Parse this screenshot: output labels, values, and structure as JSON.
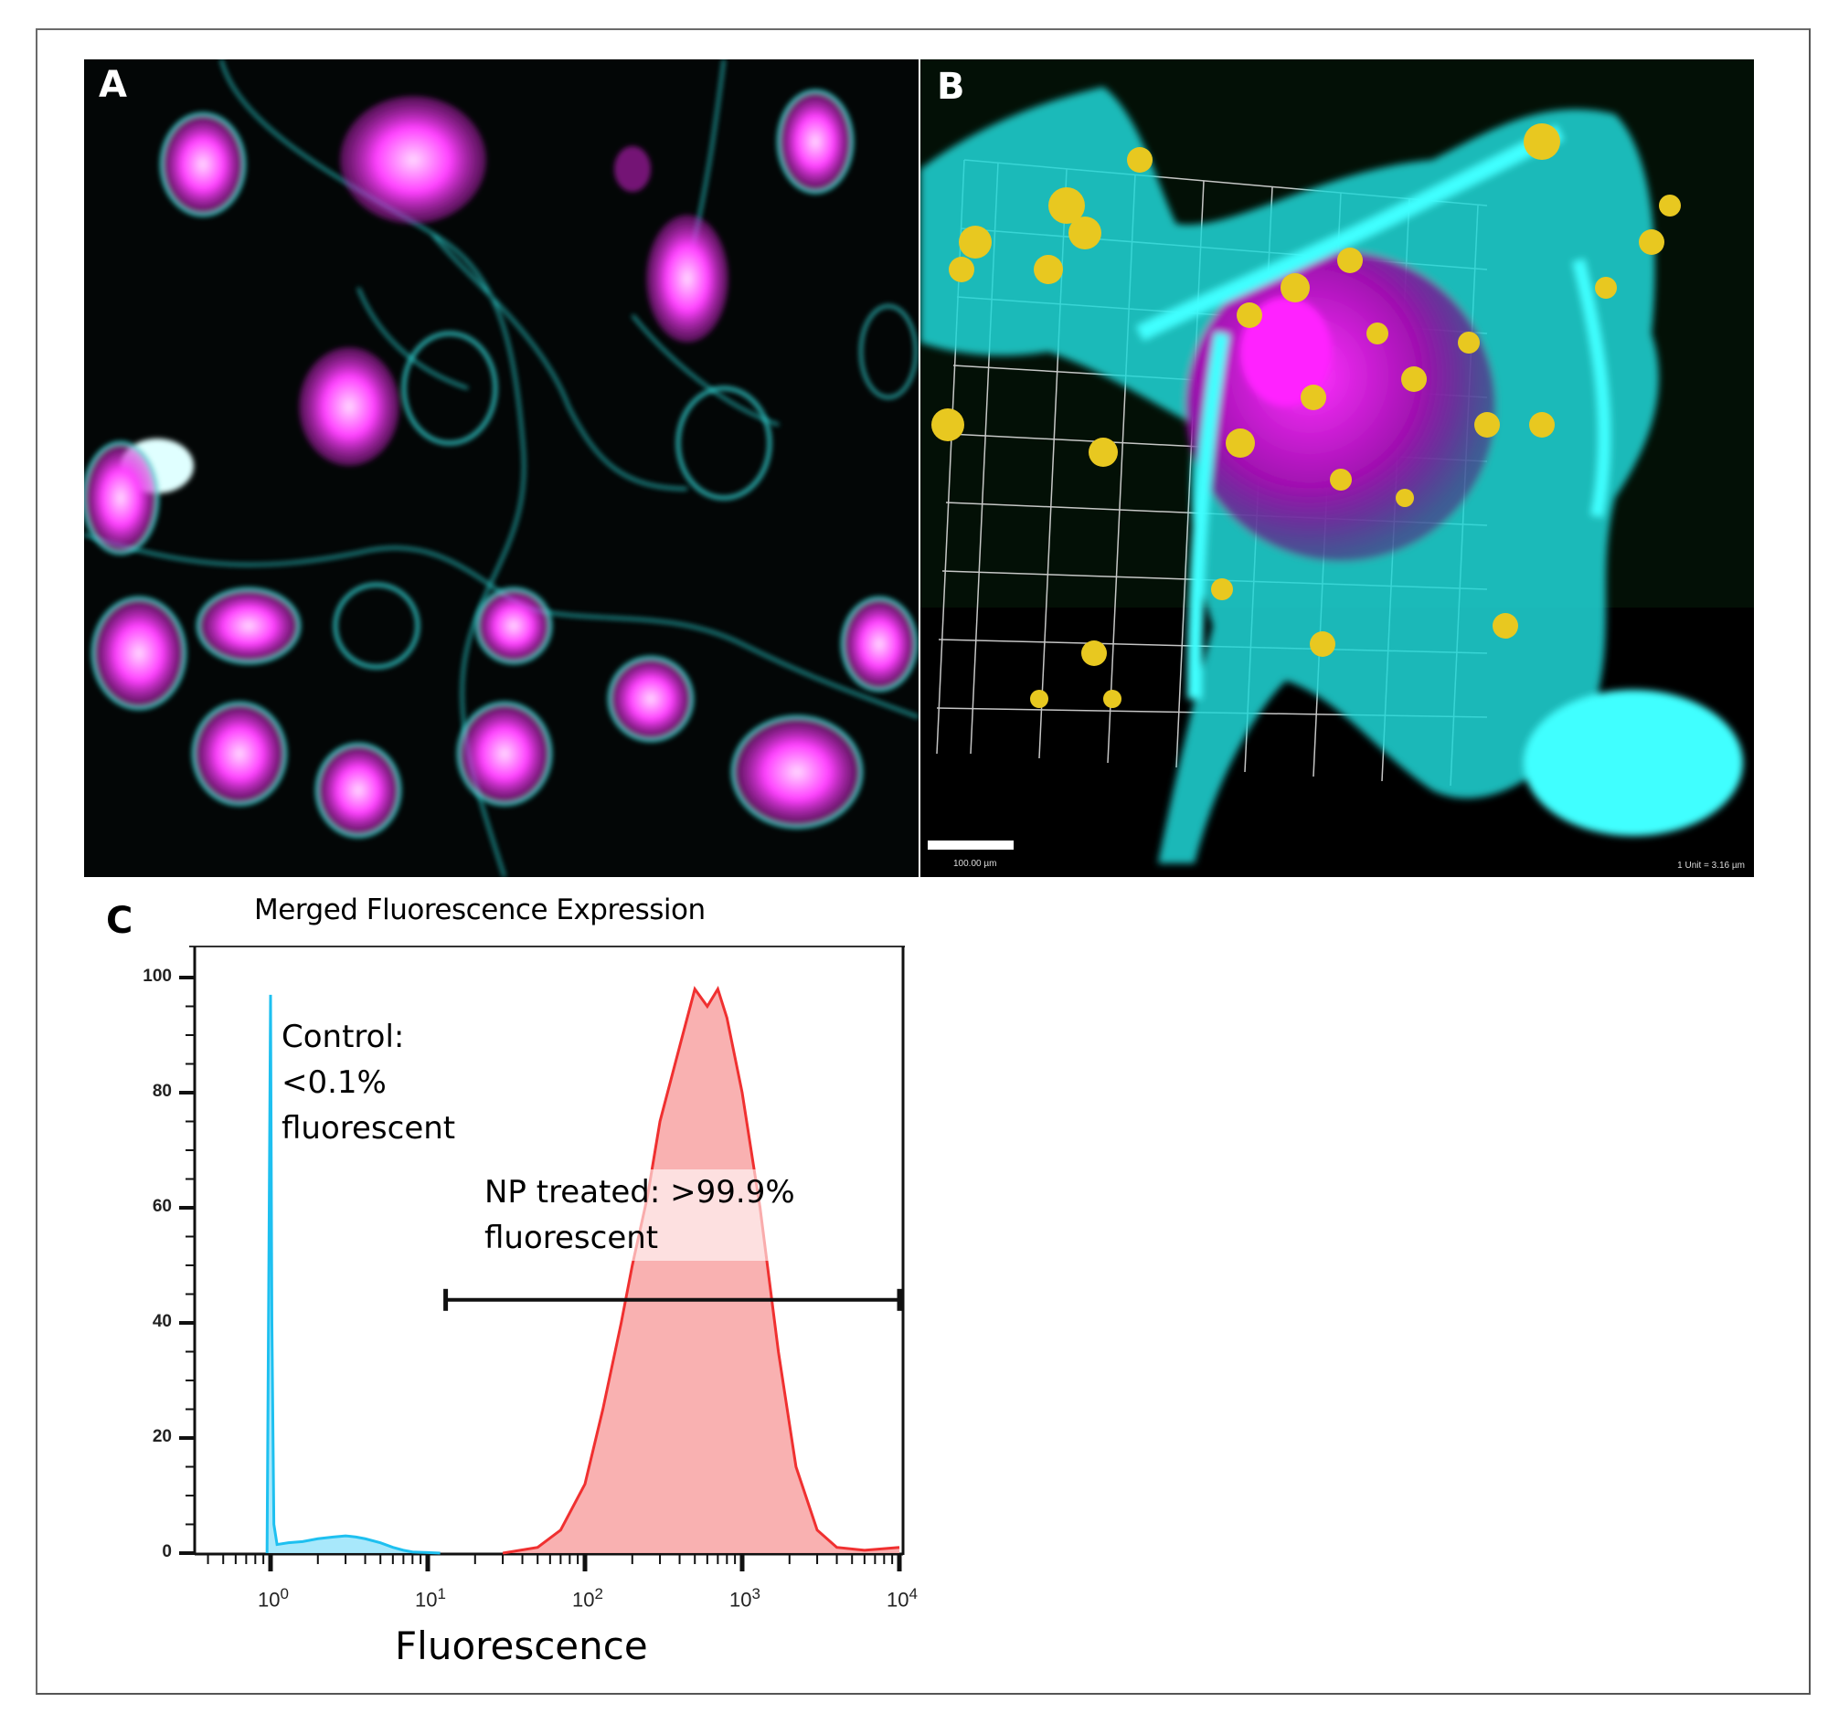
{
  "figure": {
    "panels": [
      {
        "id": "A",
        "label": "A",
        "description": "Confocal micrograph of cells, cyan membrane stain with magenta/white nanoparticle fluorescence on black background"
      },
      {
        "id": "B",
        "label": "B",
        "description": "3D rendered cell with cyan membrane, magenta nucleus, yellow nanoparticles and white grid",
        "scale_bar_label": "100.00 µm",
        "unit_label": "1 Unit = 3.16 µm"
      },
      {
        "id": "C",
        "label": "C"
      }
    ]
  },
  "chart_data": {
    "type": "area",
    "title": "Merged Fluorescence Expression",
    "xlabel": "Fluorescence",
    "ylabel": "",
    "x_scale": "log",
    "xlim": [
      0.3,
      10000
    ],
    "ylim": [
      0,
      100
    ],
    "y_ticks": [
      0,
      20,
      40,
      60,
      80,
      100
    ],
    "x_ticks": [
      {
        "base": "10",
        "exp": "0"
      },
      {
        "base": "10",
        "exp": "1"
      },
      {
        "base": "10",
        "exp": "2"
      },
      {
        "base": "10",
        "exp": "3"
      },
      {
        "base": "10",
        "exp": "4"
      }
    ],
    "grid": false,
    "series": [
      {
        "name": "Control",
        "color": "#1ec0f0",
        "fill": "#9ee6fb",
        "x": [
          0.95,
          1.0,
          1.02,
          1.05,
          1.1,
          1.3,
          1.6,
          2.0,
          2.5,
          3.0,
          3.5,
          4.0,
          5.0,
          6.0,
          7.0,
          8.0,
          10.0,
          12.0
        ],
        "y": [
          0,
          97,
          40,
          5,
          1.5,
          1.8,
          2.0,
          2.5,
          2.8,
          3.0,
          2.8,
          2.5,
          1.8,
          1.0,
          0.5,
          0.2,
          0.1,
          0
        ]
      },
      {
        "name": "NP treated",
        "color": "#f03030",
        "fill": "#f8a8a8",
        "x": [
          30,
          50,
          70,
          100,
          130,
          170,
          200,
          250,
          300,
          400,
          500,
          600,
          700,
          800,
          1000,
          1300,
          1700,
          2200,
          3000,
          4000,
          6000,
          10000
        ],
        "y": [
          0,
          1,
          4,
          12,
          25,
          40,
          50,
          62,
          75,
          88,
          98,
          95,
          98,
          93,
          80,
          60,
          35,
          15,
          4,
          1,
          0.5,
          1
        ]
      }
    ],
    "annotations": [
      {
        "text_lines": [
          "Control:",
          "<0.1%",
          "fluorescent"
        ]
      },
      {
        "text_lines": [
          "NP treated: >99.9%",
          "fluorescent"
        ]
      }
    ],
    "gate": {
      "x_start": 13,
      "x_end": 10000,
      "y": 44
    }
  }
}
